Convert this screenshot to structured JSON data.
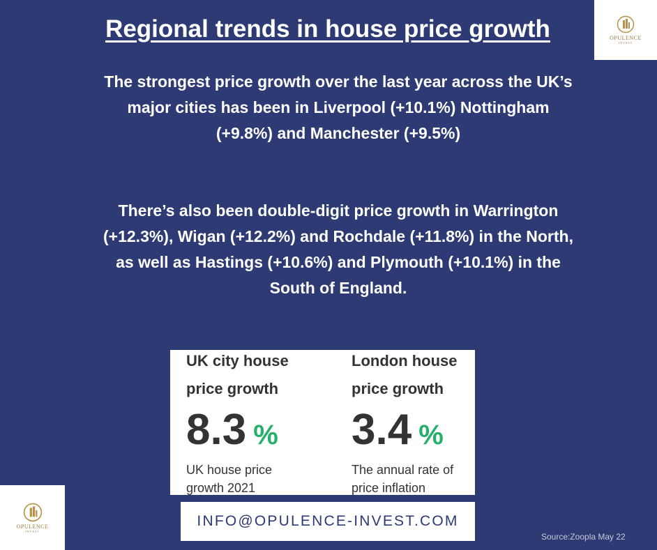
{
  "title": "Regional trends in house price growth",
  "paragraphs": [
    "The strongest price growth over the last year across the UK’s major cities has been in Liverpool (+10.1%) Nottingham (+9.8%) and Manchester (+9.5%)",
    "There’s also been double-digit price growth in Warrington (+12.3%), Wigan (+12.2%) and Rochdale (+11.8%) in the North, as well as Hastings (+10.6%) and Plymouth (+10.1%) in the South of England."
  ],
  "stats": [
    {
      "heading": "UK city house price growth",
      "value": 8.3,
      "unit": "%",
      "caption": "UK house price growth 2021"
    },
    {
      "heading": "London house price growth",
      "value": 3.4,
      "unit": "%",
      "caption": "The annual rate of price inflation"
    }
  ],
  "contact": "INFO@OPULENCE-INVEST.COM",
  "source": "Source:Zoopla May 22",
  "logo": {
    "name": "OPULENCE",
    "sub": "INVEST"
  }
}
